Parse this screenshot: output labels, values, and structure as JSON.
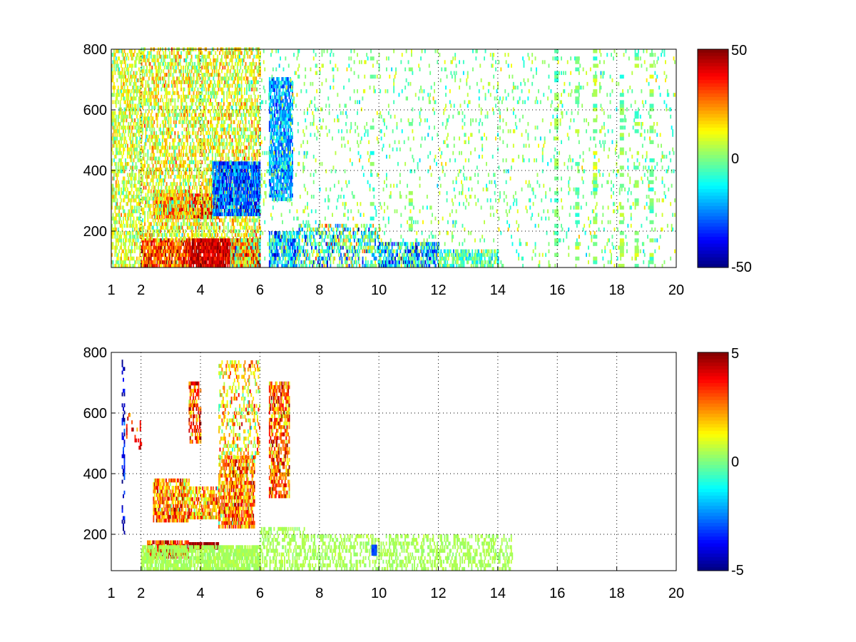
{
  "chart_data": [
    {
      "type": "heatmap",
      "xlim": [
        1,
        20
      ],
      "ylim": [
        80,
        800
      ],
      "x_ticks": [
        "1",
        "2",
        "4",
        "6",
        "8",
        "10",
        "12",
        "14",
        "16",
        "18",
        "20"
      ],
      "y_ticks": [
        "200",
        "400",
        "600",
        "800"
      ],
      "grid": true,
      "colorbar": {
        "clim": [
          -50,
          50
        ],
        "ticks": [
          "50",
          "0",
          "-50"
        ],
        "colormap": "jet"
      },
      "regions": [
        {
          "x": [
            1.0,
            2.0
          ],
          "y": [
            80,
            800
          ],
          "density": 0.55,
          "mean": 8,
          "spread": 10
        },
        {
          "x": [
            2.0,
            3.6
          ],
          "y": [
            80,
            170
          ],
          "density": 0.9,
          "mean": 30,
          "spread": 15
        },
        {
          "x": [
            2.4,
            3.6
          ],
          "y": [
            240,
            330
          ],
          "density": 0.9,
          "mean": 30,
          "spread": 10
        },
        {
          "x": [
            3.6,
            4.6
          ],
          "y": [
            240,
            320
          ],
          "density": 0.9,
          "mean": 38,
          "spread": 10
        },
        {
          "x": [
            2.0,
            6.0
          ],
          "y": [
            170,
            800
          ],
          "density": 0.5,
          "mean": 10,
          "spread": 12
        },
        {
          "x": [
            4.4,
            6.0
          ],
          "y": [
            250,
            420
          ],
          "density": 0.85,
          "mean": -28,
          "spread": 12
        },
        {
          "x": [
            3.6,
            6.0
          ],
          "y": [
            80,
            170
          ],
          "density": 0.95,
          "mean": 42,
          "spread": 8
        },
        {
          "x": [
            5.0,
            6.0
          ],
          "y": [
            80,
            170
          ],
          "density": 0.9,
          "mean": 12,
          "spread": 22
        },
        {
          "x": [
            6.3,
            7.1
          ],
          "y": [
            300,
            700
          ],
          "density": 0.75,
          "mean": -22,
          "spread": 10
        },
        {
          "x": [
            6.3,
            7.3
          ],
          "y": [
            80,
            200
          ],
          "density": 0.7,
          "mean": -20,
          "spread": 15
        },
        {
          "x": [
            7.3,
            10.0
          ],
          "y": [
            80,
            220
          ],
          "density": 0.45,
          "mean": -8,
          "spread": 22
        },
        {
          "x": [
            10.0,
            12.0
          ],
          "y": [
            80,
            160
          ],
          "density": 0.7,
          "mean": -18,
          "spread": 20
        },
        {
          "x": [
            12.0,
            14.0
          ],
          "y": [
            80,
            140
          ],
          "density": 0.6,
          "mean": -6,
          "spread": 12
        },
        {
          "x": [
            6.0,
            20.0
          ],
          "y": [
            80,
            800
          ],
          "density": 0.07,
          "mean": 0,
          "spread": 9
        }
      ],
      "columns": [
        {
          "x": 15.9,
          "density": 0.35
        },
        {
          "x": 16.6,
          "density": 0.3
        },
        {
          "x": 17.2,
          "density": 0.35
        },
        {
          "x": 18.1,
          "density": 0.3
        },
        {
          "x": 18.6,
          "density": 0.3
        },
        {
          "x": 19.1,
          "density": 0.35
        },
        {
          "x": 11.0,
          "density": 0.2
        },
        {
          "x": 9.7,
          "density": 0.2
        }
      ]
    },
    {
      "type": "heatmap",
      "xlim": [
        1,
        20
      ],
      "ylim": [
        80,
        800
      ],
      "x_ticks": [
        "1",
        "2",
        "4",
        "6",
        "8",
        "10",
        "12",
        "14",
        "16",
        "18",
        "20"
      ],
      "y_ticks": [
        "200",
        "400",
        "600",
        "800"
      ],
      "grid": true,
      "colorbar": {
        "clim": [
          -5,
          5
        ],
        "ticks": [
          "5",
          "0",
          "-5"
        ],
        "colormap": "jet"
      },
      "regions": [
        {
          "x": [
            1.35,
            1.45
          ],
          "y": [
            200,
            770
          ],
          "density": 0.4,
          "mean": -4,
          "spread": 1
        },
        {
          "x": [
            1.5,
            2.0
          ],
          "y": [
            480,
            600
          ],
          "density": 0.15,
          "mean": 3.5,
          "spread": 1
        },
        {
          "x": [
            2.2,
            3.6
          ],
          "y": [
            120,
            180
          ],
          "density": 0.8,
          "mean": 3.5,
          "spread": 1.5
        },
        {
          "x": [
            2.4,
            3.6
          ],
          "y": [
            240,
            380
          ],
          "density": 0.75,
          "mean": 2.5,
          "spread": 1.5
        },
        {
          "x": [
            3.6,
            4.6
          ],
          "y": [
            250,
            350
          ],
          "density": 0.7,
          "mean": 2,
          "spread": 1.5
        },
        {
          "x": [
            3.6,
            4.6
          ],
          "y": [
            150,
            170
          ],
          "density": 0.9,
          "mean": 4.5,
          "spread": 0.5
        },
        {
          "x": [
            3.6,
            4.0
          ],
          "y": [
            500,
            700
          ],
          "density": 0.55,
          "mean": 3,
          "spread": 1.5
        },
        {
          "x": [
            4.6,
            5.8
          ],
          "y": [
            220,
            450
          ],
          "density": 0.75,
          "mean": 2.5,
          "spread": 1.5
        },
        {
          "x": [
            4.6,
            6.0
          ],
          "y": [
            450,
            770
          ],
          "density": 0.3,
          "mean": 1.5,
          "spread": 1.5
        },
        {
          "x": [
            2.0,
            6.0
          ],
          "y": [
            80,
            160
          ],
          "density": 0.8,
          "mean": 0.4,
          "spread": 0.2
        },
        {
          "x": [
            6.3,
            7.0
          ],
          "y": [
            320,
            700
          ],
          "density": 0.65,
          "mean": 2.8,
          "spread": 1.5
        },
        {
          "x": [
            6.0,
            7.5
          ],
          "y": [
            80,
            220
          ],
          "density": 0.45,
          "mean": 0.4,
          "spread": 0.2
        },
        {
          "x": [
            7.5,
            14.5
          ],
          "y": [
            80,
            200
          ],
          "density": 0.4,
          "mean": 0.4,
          "spread": 0.2
        },
        {
          "x": [
            9.75,
            9.9
          ],
          "y": [
            130,
            155
          ],
          "density": 1.0,
          "mean": -3,
          "spread": 0.3
        }
      ],
      "columns": []
    }
  ]
}
